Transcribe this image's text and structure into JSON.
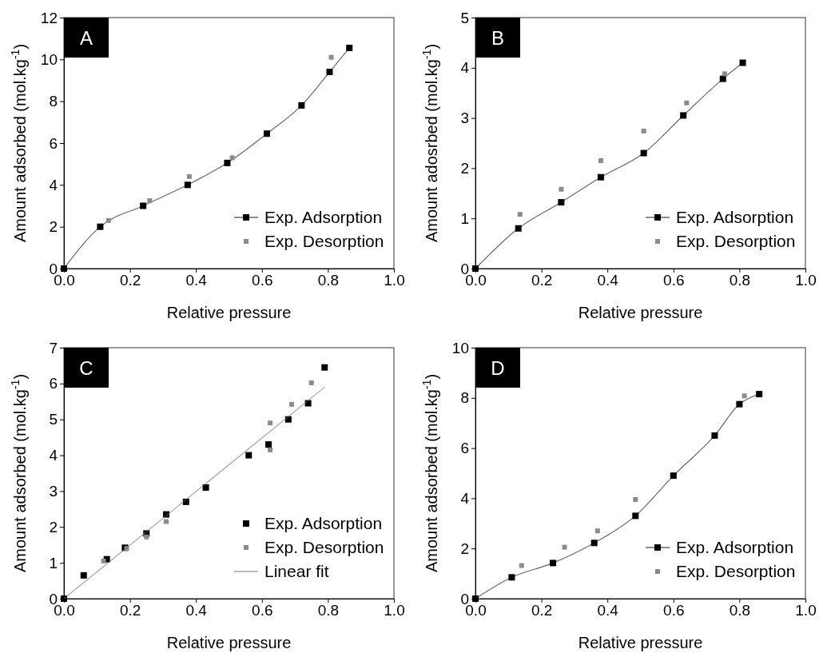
{
  "chart_data": [
    {
      "type": "line",
      "title": "A",
      "xlabel": "Relative pressure",
      "ylabel": "Amount adsorbed (mol.kg$^{-1}$)",
      "xlim": [
        0,
        1
      ],
      "ylim": [
        0,
        12
      ],
      "xticks": [
        {
          "value": 0,
          "label": "0.0"
        },
        {
          "value": 0.2,
          "label": "0.2"
        },
        {
          "value": 0.4,
          "label": "0.4"
        },
        {
          "value": 0.6,
          "label": "0.6"
        },
        {
          "value": 0.8,
          "label": "0.8"
        },
        {
          "value": 1,
          "label": "1.0"
        }
      ],
      "yticks": [
        0,
        2,
        4,
        6,
        8,
        10,
        12
      ],
      "legend": "bottom right",
      "grid": false,
      "series": [
        {
          "name": "Exp. Adsorption",
          "marker": "square",
          "color": "#000000",
          "x": [
            0,
            0.11,
            0.24,
            0.375,
            0.495,
            0.615,
            0.72,
            0.805,
            0.865
          ],
          "values": [
            0,
            2.0,
            3.0,
            4.0,
            5.05,
            6.45,
            7.8,
            9.4,
            10.55
          ]
        },
        {
          "name": "Exp. Desorption",
          "type": "scatter",
          "marker": "square",
          "color": "#8c8c8c",
          "x": [
            0.135,
            0.26,
            0.38,
            0.51,
            0.81
          ],
          "values": [
            2.3,
            3.25,
            4.4,
            5.3,
            10.1
          ]
        }
      ]
    },
    {
      "type": "line",
      "title": "B",
      "xlabel": "Relative pressure",
      "ylabel": "Amount adosrbed (mol.kg$^{-1}$)",
      "xlim": [
        0,
        1
      ],
      "ylim": [
        0,
        5
      ],
      "xticks": [
        {
          "value": 0,
          "label": "0.0"
        },
        {
          "value": 0.2,
          "label": "0.2"
        },
        {
          "value": 0.4,
          "label": "0.4"
        },
        {
          "value": 0.6,
          "label": "0.6"
        },
        {
          "value": 0.8,
          "label": "0.8"
        },
        {
          "value": 1,
          "label": "1.0"
        }
      ],
      "yticks": [
        0,
        1,
        2,
        3,
        4,
        5
      ],
      "legend": "bottom right",
      "grid": false,
      "series": [
        {
          "name": "Exp. Adsorption",
          "marker": "square",
          "color": "#000000",
          "x": [
            0,
            0.13,
            0.26,
            0.38,
            0.51,
            0.63,
            0.75,
            0.81
          ],
          "values": [
            0,
            0.8,
            1.32,
            1.82,
            2.3,
            3.05,
            3.78,
            4.1
          ]
        },
        {
          "name": "Exp. Desorption",
          "type": "scatter",
          "marker": "square",
          "color": "#8c8c8c",
          "x": [
            0.135,
            0.26,
            0.38,
            0.51,
            0.64,
            0.755
          ],
          "values": [
            1.08,
            1.58,
            2.15,
            2.74,
            3.3,
            3.88
          ]
        }
      ]
    },
    {
      "type": "scatter",
      "title": "C",
      "xlabel": "Relative pressure",
      "ylabel": "Amount adsorbed (mol.kg$^{-1}$)",
      "xlim": [
        0,
        1
      ],
      "ylim": [
        0,
        7
      ],
      "xticks": [
        {
          "value": 0,
          "label": "0.0"
        },
        {
          "value": 0.2,
          "label": "0.2"
        },
        {
          "value": 0.4,
          "label": "0.4"
        },
        {
          "value": 0.6,
          "label": "0.6"
        },
        {
          "value": 0.8,
          "label": "0.8"
        },
        {
          "value": 1,
          "label": "1.0"
        }
      ],
      "yticks": [
        0,
        1,
        2,
        3,
        4,
        5,
        6,
        7
      ],
      "legend": "bottom right",
      "grid": false,
      "series": [
        {
          "name": "Exp. Adsorption",
          "marker": "square",
          "color": "#000000",
          "x": [
            0,
            0.06,
            0.13,
            0.185,
            0.25,
            0.31,
            0.37,
            0.43,
            0.56,
            0.62,
            0.68,
            0.74,
            0.79
          ],
          "values": [
            0,
            0.65,
            1.1,
            1.42,
            1.82,
            2.35,
            2.7,
            3.1,
            4.0,
            4.3,
            5.0,
            5.45,
            6.45
          ]
        },
        {
          "name": "Exp. Desorption",
          "marker": "square",
          "color": "#8c8c8c",
          "x": [
            0.12,
            0.19,
            0.25,
            0.31,
            0.625,
            0.625,
            0.69,
            0.75
          ],
          "values": [
            1.05,
            1.4,
            1.72,
            2.15,
            4.9,
            4.15,
            5.42,
            6.02
          ]
        },
        {
          "name": "Linear fit",
          "type": "line",
          "marker": "none",
          "color": "#6b6b6b",
          "x": [
            0,
            0.79
          ],
          "values": [
            0,
            5.9
          ]
        }
      ]
    },
    {
      "type": "line",
      "title": "D",
      "xlabel": "Relative pressure",
      "ylabel": "Amount adsorbed (mol.kg$^{-1}$)",
      "xlim": [
        0,
        1
      ],
      "ylim": [
        0,
        10
      ],
      "xticks": [
        {
          "value": 0,
          "label": "0.0"
        },
        {
          "value": 0.2,
          "label": "0.2"
        },
        {
          "value": 0.4,
          "label": "0.4"
        },
        {
          "value": 0.6,
          "label": "0.6"
        },
        {
          "value": 0.8,
          "label": "0.8"
        },
        {
          "value": 1,
          "label": "1.0"
        }
      ],
      "yticks": [
        0,
        2,
        4,
        6,
        8,
        10
      ],
      "legend": "bottom right",
      "grid": false,
      "series": [
        {
          "name": "Exp. Adsorption",
          "marker": "square",
          "color": "#000000",
          "x": [
            0,
            0.11,
            0.235,
            0.36,
            0.485,
            0.6,
            0.725,
            0.8,
            0.86
          ],
          "values": [
            0,
            0.85,
            1.42,
            2.22,
            3.3,
            4.9,
            6.5,
            7.75,
            8.15
          ]
        },
        {
          "name": "Exp. Desorption",
          "type": "scatter",
          "marker": "square",
          "color": "#8c8c8c",
          "x": [
            0.14,
            0.27,
            0.37,
            0.485,
            0.815
          ],
          "values": [
            1.32,
            2.05,
            2.7,
            3.95,
            8.08
          ]
        }
      ]
    }
  ]
}
